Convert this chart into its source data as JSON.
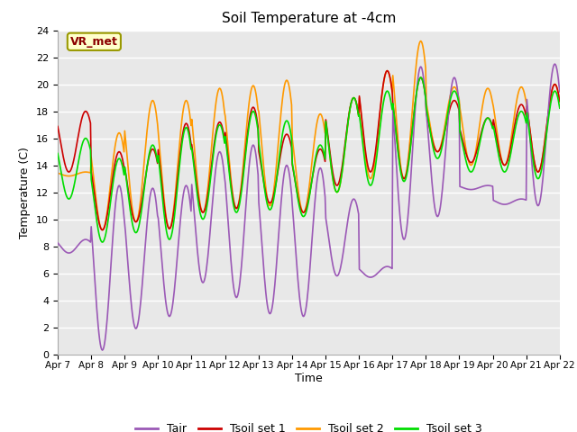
{
  "title": "Soil Temperature at -4cm",
  "xlabel": "Time",
  "ylabel": "Temperature (C)",
  "ylim": [
    0,
    24
  ],
  "yticks": [
    0,
    2,
    4,
    6,
    8,
    10,
    12,
    14,
    16,
    18,
    20,
    22,
    24
  ],
  "xtick_labels": [
    "Apr 7",
    "Apr 8",
    "Apr 9",
    "Apr 10",
    "Apr 11",
    "Apr 12",
    "Apr 13",
    "Apr 14",
    "Apr 15",
    "Apr 16",
    "Apr 17",
    "Apr 18",
    "Apr 19",
    "Apr 20",
    "Apr 21",
    "Apr 22"
  ],
  "colors": {
    "Tair": "#9b59b6",
    "Tsoil1": "#cc0000",
    "Tsoil2": "#ff9900",
    "Tsoil3": "#00dd00"
  },
  "legend_labels": [
    "Tair",
    "Tsoil set 1",
    "Tsoil set 2",
    "Tsoil set 3"
  ],
  "annotation_text": "VR_met",
  "annotation_color": "#8b0000",
  "annotation_bg": "#ffffcc",
  "bg_color": "#e8e8e8",
  "grid_color": "#ffffff",
  "line_width": 1.2,
  "day_peaks_air": [
    8.5,
    12.5,
    12.3,
    12.5,
    15.0,
    15.5,
    14.0,
    13.8,
    11.5,
    6.5,
    21.3,
    20.5,
    12.5,
    11.5,
    21.5
  ],
  "day_troughs_air": [
    7.5,
    0.3,
    1.9,
    2.8,
    5.3,
    4.2,
    3.0,
    2.8,
    5.8,
    5.7,
    8.5,
    10.2,
    12.2,
    11.1,
    11.0
  ],
  "day_peaks_s1": [
    18.0,
    15.0,
    15.2,
    17.1,
    17.2,
    18.3,
    16.3,
    15.2,
    19.0,
    21.0,
    20.5,
    18.8,
    17.5,
    18.5,
    20.0
  ],
  "day_troughs_s1": [
    13.5,
    9.2,
    9.8,
    9.3,
    10.5,
    10.8,
    11.2,
    10.5,
    12.5,
    13.5,
    13.0,
    15.0,
    14.2,
    14.0,
    13.5
  ],
  "day_peaks_s2": [
    13.5,
    16.4,
    18.8,
    18.8,
    19.7,
    19.9,
    20.3,
    17.8,
    19.0,
    21.0,
    23.2,
    19.8,
    19.7,
    19.8,
    20.0
  ],
  "day_troughs_s2": [
    13.2,
    9.2,
    9.8,
    9.3,
    10.5,
    10.8,
    11.0,
    10.5,
    12.0,
    13.0,
    13.0,
    15.0,
    14.0,
    14.0,
    13.5
  ],
  "day_peaks_s3": [
    16.0,
    14.5,
    15.5,
    16.8,
    17.0,
    18.0,
    17.3,
    15.5,
    19.0,
    19.5,
    20.5,
    19.5,
    17.5,
    18.0,
    19.5
  ],
  "day_troughs_s3": [
    11.5,
    8.3,
    9.0,
    8.5,
    10.0,
    10.5,
    10.7,
    10.2,
    12.0,
    12.5,
    12.8,
    14.5,
    13.5,
    13.5,
    13.0
  ]
}
